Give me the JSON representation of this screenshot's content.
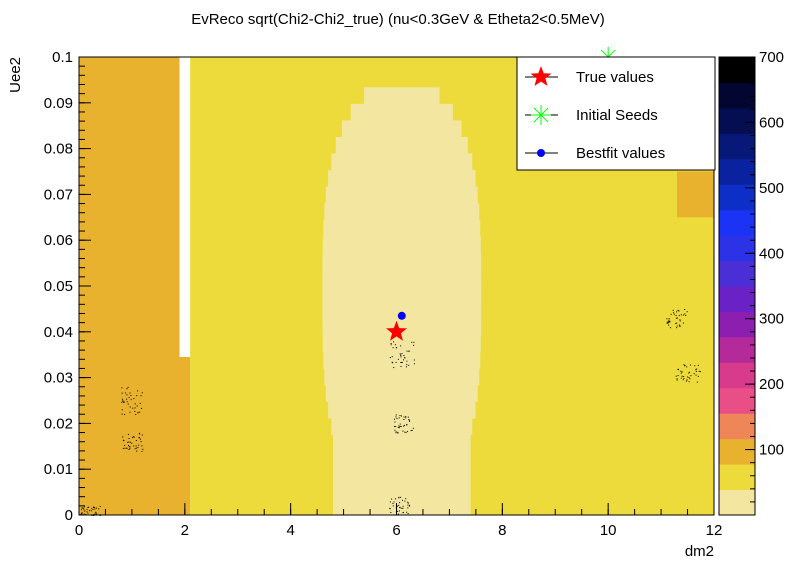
{
  "chart_data": {
    "type": "heatmap",
    "title": "EvReco sqrt(Chi2-Chi2_true) (nu<0.3GeV & Etheta2<0.5MeV)",
    "xlabel": "dm2",
    "ylabel": "Uee2",
    "xlim": [
      0,
      12
    ],
    "ylim": [
      0,
      0.1
    ],
    "x_ticks": [
      "0",
      "2",
      "4",
      "6",
      "8",
      "10",
      "12"
    ],
    "y_ticks": [
      "0",
      "0.01",
      "0.02",
      "0.03",
      "0.04",
      "0.05",
      "0.06",
      "0.07",
      "0.08",
      "0.09",
      "0.1"
    ],
    "zlim": [
      0,
      700
    ],
    "z_ticks": [
      "100",
      "200",
      "300",
      "400",
      "500",
      "600",
      "700"
    ],
    "palette": [
      "#f2e6a0",
      "#eddb3c",
      "#e8b22f",
      "#ef8657",
      "#e94f86",
      "#d83b8c",
      "#b52a9a",
      "#8c1fb0",
      "#6a22c6",
      "#4a2ed6",
      "#2c32e6",
      "#1a33f4",
      "#0e2ec8",
      "#0a22a0",
      "#071878",
      "#040e50",
      "#020630",
      "#000000"
    ],
    "regions": [
      {
        "name": "orange-left",
        "value": 70,
        "x": [
          0,
          2.1
        ],
        "y": [
          0,
          0.1
        ]
      },
      {
        "name": "yellow-main",
        "value": 40,
        "x": [
          2.1,
          12
        ],
        "y": [
          0,
          0.1
        ]
      },
      {
        "name": "pale-valley",
        "value": 15,
        "x": [
          4.6,
          7.6
        ],
        "y": [
          0,
          0.097
        ],
        "center": [
          6.1,
          0.05
        ]
      }
    ],
    "markers": [
      {
        "name": "True values",
        "x": 6.0,
        "y": 0.04,
        "symbol": "star",
        "color": "#ff0000"
      },
      {
        "name": "Initial Seeds",
        "x": 10.0,
        "y": 0.1,
        "symbol": "asterisk",
        "color": "#00ff00"
      },
      {
        "name": "Bestfit values",
        "x": 6.1,
        "y": 0.0435,
        "symbol": "circle",
        "color": "#0000ff"
      }
    ],
    "legend": {
      "placement": "top-right",
      "entries": [
        "True values",
        "Initial Seeds",
        "Bestfit values"
      ]
    },
    "grid": false
  }
}
